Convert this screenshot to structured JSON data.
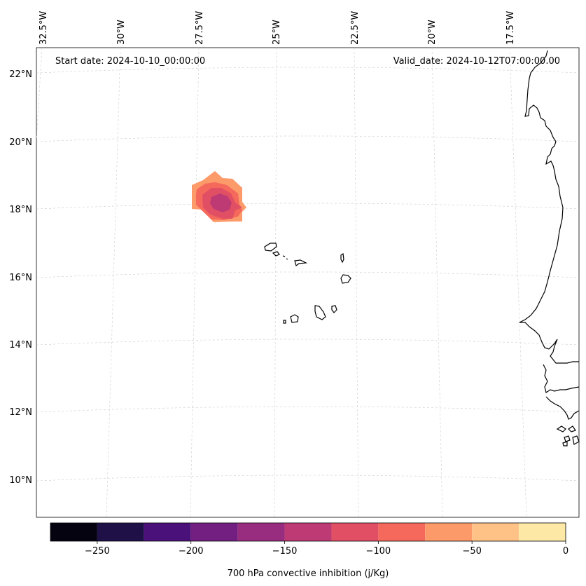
{
  "map": {
    "start_date": "Start date: 2024-10-10_00:00:00",
    "valid_date": "Valid_date: 2024-10-12T07:00:00.00",
    "lon_labels": [
      "32.5°W",
      "30°W",
      "27.5°W",
      "25°W",
      "22.5°W",
      "20°W",
      "17.5°W"
    ],
    "lat_labels": [
      "22°N",
      "20°N",
      "18°N",
      "16°N",
      "14°N",
      "12°N",
      "10°N"
    ]
  },
  "colorbar": {
    "label": "700 hPa convective inhibition (j/Kg)",
    "tick_labels": [
      "−250",
      "−200",
      "−150",
      "−100",
      "−50",
      "0"
    ],
    "levels": [
      -275,
      -250,
      -225,
      -200,
      -175,
      -150,
      -125,
      -100,
      -75,
      -50,
      -25,
      0
    ],
    "colors": [
      "#05030f",
      "#1f1147",
      "#4b117a",
      "#721f81",
      "#982d80",
      "#be3a74",
      "#e04f63",
      "#f4695c",
      "#fd9a6a",
      "#fec287",
      "#fde9a5"
    ]
  },
  "field": {
    "outer_color": "#fd9a6a",
    "ring2_color": "#f4695c",
    "ring3_color": "#e04f63",
    "core_color": "#be3a74"
  }
}
